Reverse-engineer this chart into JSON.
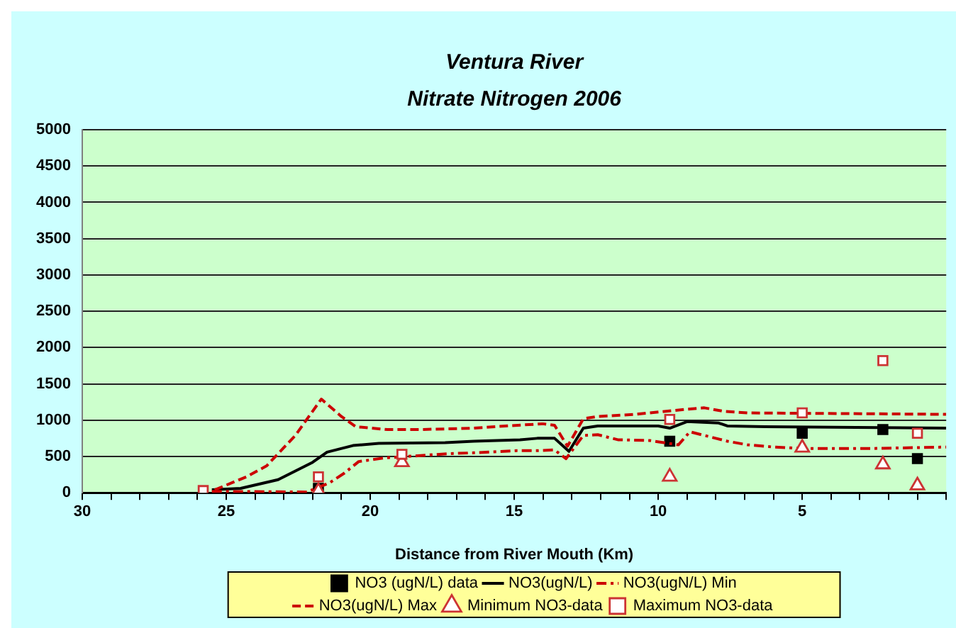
{
  "chart_data": {
    "type": "line",
    "title": "Ventura River\nNitrate Nitrogen 2006",
    "xlabel": "Distance from River Mouth (Km)",
    "xlim": [
      30,
      0
    ],
    "xticks": [
      30,
      {
        "value": 29,
        "label": null
      },
      {
        "value": 28,
        "label": null
      },
      {
        "value": 27,
        "label": null
      },
      {
        "value": 26,
        "label": null
      },
      25,
      {
        "value": 24,
        "label": null
      },
      {
        "value": 23,
        "label": null
      },
      {
        "value": 22,
        "label": null
      },
      {
        "value": 21,
        "label": null
      },
      20,
      {
        "value": 19,
        "label": null
      },
      {
        "value": 18,
        "label": null
      },
      {
        "value": 17,
        "label": null
      },
      {
        "value": 16,
        "label": null
      },
      15,
      {
        "value": 14,
        "label": null
      },
      {
        "value": 13,
        "label": null
      },
      {
        "value": 12,
        "label": null
      },
      {
        "value": 11,
        "label": null
      },
      10,
      {
        "value": 9,
        "label": null
      },
      {
        "value": 8,
        "label": null
      },
      {
        "value": 7,
        "label": null
      },
      {
        "value": 6,
        "label": null
      },
      5,
      {
        "value": 4,
        "label": null
      },
      {
        "value": 3,
        "label": null
      },
      {
        "value": 2,
        "label": null
      },
      {
        "value": 1,
        "label": null
      },
      {
        "value": 0,
        "label": null
      }
    ],
    "ylim": [
      0,
      5000
    ],
    "yticks": [
      0,
      500,
      1000,
      1500,
      2000,
      2500,
      3000,
      3500,
      4000,
      4500,
      5000
    ],
    "grid": "y",
    "legend": "bottom",
    "series": [
      {
        "name": "NO3 (ugN/L) data",
        "type": "scatter",
        "marker": "square",
        "color": "#000000",
        "x": [
          21.8,
          9.6,
          5.0,
          2.2,
          1.0
        ],
        "values": [
          60,
          710,
          820,
          870,
          470
        ]
      },
      {
        "name": "NO3(ugN/L)",
        "type": "line",
        "marker": "none",
        "line_style": "solid",
        "color": "#000000",
        "x": [
          25.5,
          24.5,
          23.2,
          22.0,
          21.5,
          20.6,
          19.7,
          17.4,
          16.4,
          14.8,
          14.2,
          13.6,
          13.1,
          12.6,
          12.1,
          10.0,
          9.6,
          9.0,
          7.9,
          7.6,
          6.3,
          0
        ],
        "values": [
          40,
          60,
          180,
          420,
          560,
          650,
          680,
          690,
          710,
          730,
          750,
          750,
          570,
          890,
          920,
          920,
          890,
          980,
          960,
          920,
          910,
          890
        ]
      },
      {
        "name": "NO3(ugN/L) Min",
        "type": "line",
        "marker": "none",
        "line_style": "dashed",
        "color": "#cc0000",
        "x": [
          25.5,
          22.2,
          21.4,
          20.9,
          20.4,
          19.5,
          17.2,
          16.4,
          14.9,
          14.2,
          13.6,
          13.2,
          12.6,
          12.1,
          11.4,
          10.3,
          9.3,
          8.9,
          8.4,
          7.6,
          6.9,
          6.0,
          5.0,
          2.5,
          0
        ],
        "values": [
          20,
          10,
          140,
          270,
          430,
          480,
          540,
          550,
          580,
          580,
          590,
          470,
          790,
          800,
          730,
          720,
          660,
          840,
          790,
          710,
          660,
          630,
          610,
          610,
          630
        ]
      },
      {
        "name": "NO3(ugN/L) Max",
        "type": "line",
        "marker": "none",
        "line_style": "dashed",
        "color": "#cc0000",
        "x": [
          25.4,
          24.3,
          23.6,
          22.6,
          21.7,
          21.0,
          20.5,
          19.4,
          18.3,
          16.4,
          15.3,
          14.0,
          13.6,
          13.15,
          12.6,
          12.1,
          10.8,
          9.0,
          8.4,
          7.7,
          6.9,
          0
        ],
        "values": [
          40,
          220,
          370,
          790,
          1290,
          1050,
          910,
          870,
          870,
          890,
          920,
          950,
          930,
          640,
          1020,
          1050,
          1080,
          1150,
          1170,
          1120,
          1100,
          1080
        ]
      },
      {
        "name": "Minimum NO3-data",
        "type": "scatter",
        "marker": "triangle",
        "color": "#cc3333",
        "x": [
          21.8,
          18.9,
          9.6,
          5.0,
          2.2,
          1.0
        ],
        "values": [
          20,
          420,
          220,
          620,
          390,
          100
        ]
      },
      {
        "name": "Maximum NO3-data",
        "type": "scatter",
        "marker": "square",
        "color": "#cc3333",
        "x": [
          25.8,
          21.8,
          18.9,
          9.6,
          5.0,
          2.2,
          1.0
        ],
        "values": [
          30,
          220,
          530,
          1010,
          1100,
          1820,
          820
        ]
      }
    ]
  }
}
